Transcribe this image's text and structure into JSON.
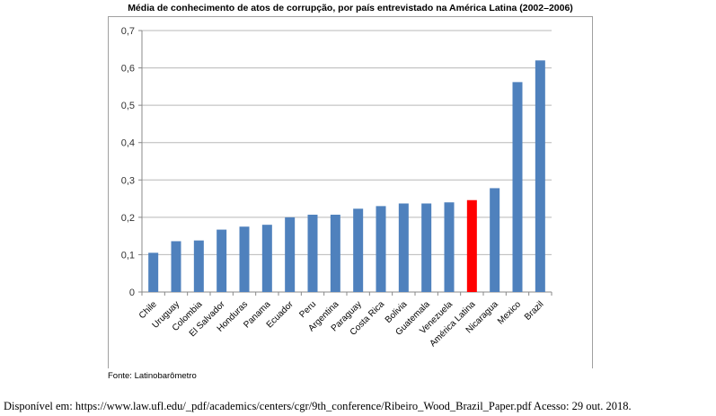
{
  "chart_data": {
    "type": "bar",
    "title": "Média de conhecimento de atos de corrupção, por país entrevistado na América Latina (2002–2006)",
    "xlabel": "",
    "ylabel": "",
    "ylim": [
      0,
      0.7
    ],
    "yticks": [
      "0",
      "0,1",
      "0,2",
      "0,3",
      "0,4",
      "0,5",
      "0,6",
      "0,7"
    ],
    "grid": true,
    "categories": [
      "Chile",
      "Uruguay",
      "Colombia",
      "El Salvador",
      "Honduras",
      "Panama",
      "Ecuador",
      "Peru",
      "Argentina",
      "Paraguay",
      "Costa Rica",
      "Bolivia",
      "Guatemala",
      "Venezuela",
      "América Latina",
      "Nicaragua",
      "Mexico",
      "Brazil"
    ],
    "values": [
      0.105,
      0.136,
      0.138,
      0.167,
      0.175,
      0.18,
      0.2,
      0.207,
      0.207,
      0.223,
      0.23,
      0.237,
      0.237,
      0.24,
      0.246,
      0.278,
      0.562,
      0.62
    ],
    "bar_color": "#4f81bd",
    "highlight_color": "#ff0000",
    "highlight_category": "América Latina"
  },
  "source": "Fonte: Latinobarômetro",
  "caption": "Disponível em: https://www.law.ufl.edu/_pdf/academics/centers/cgr/9th_conference/Ribeiro_Wood_Brazil_Paper.pdf Acesso: 29 out. 2018."
}
